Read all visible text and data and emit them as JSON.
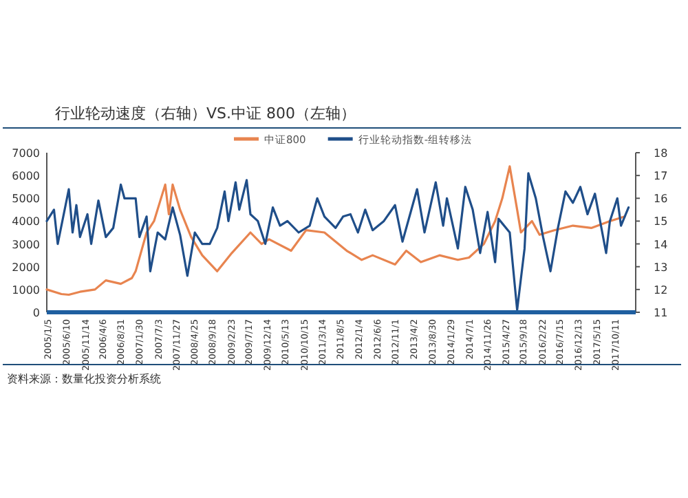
{
  "chart_data": {
    "type": "line",
    "title": "行业轮动速度（右轴）VS.中证 800（左轴）",
    "annotations": [
      "资料来源：数量化投资分析系统"
    ],
    "legend": "top",
    "grid": false,
    "xlim": [
      "2005-01-01",
      "2018-04-01"
    ],
    "xticks": [
      {
        "value": "2005-01-05",
        "label": "2005/1/5"
      },
      {
        "value": "2005-06-10",
        "label": "2005/6/10"
      },
      {
        "value": "2005-11-14",
        "label": "2005/11/14"
      },
      {
        "value": "2006-04-06",
        "label": "2006/4/6"
      },
      {
        "value": "2006-08-31",
        "label": "2006/8/31"
      },
      {
        "value": "2007-01-30",
        "label": "2007/1/30"
      },
      {
        "value": "2007-07-03",
        "label": "2007/7/3"
      },
      {
        "value": "2007-11-27",
        "label": "2007/11/27"
      },
      {
        "value": "2008-04-25",
        "label": "2008/4/25"
      },
      {
        "value": "2008-09-18",
        "label": "2008/9/18"
      },
      {
        "value": "2009-02-23",
        "label": "2009/2/23"
      },
      {
        "value": "2009-07-17",
        "label": "2009/7/17"
      },
      {
        "value": "2009-12-14",
        "label": "2009/12/14"
      },
      {
        "value": "2010-05-13",
        "label": "2010/5/13"
      },
      {
        "value": "2010-10-15",
        "label": "2010/10/15"
      },
      {
        "value": "2011-03-14",
        "label": "2011/3/14"
      },
      {
        "value": "2011-08-05",
        "label": "2011/8/5"
      },
      {
        "value": "2012-01-04",
        "label": "2012/1/4"
      },
      {
        "value": "2012-06-06",
        "label": "2012/6/6"
      },
      {
        "value": "2012-11-01",
        "label": "2012/11/1"
      },
      {
        "value": "2013-04-02",
        "label": "2013/4/2"
      },
      {
        "value": "2013-08-30",
        "label": "2013/8/30"
      },
      {
        "value": "2014-01-29",
        "label": "2014/1/29"
      },
      {
        "value": "2014-07-01",
        "label": "2014/7/1"
      },
      {
        "value": "2014-11-26",
        "label": "2014/11/26"
      },
      {
        "value": "2015-04-27",
        "label": "2015/4/27"
      },
      {
        "value": "2015-09-18",
        "label": "2015/9/18"
      },
      {
        "value": "2016-02-22",
        "label": "2016/2/22"
      },
      {
        "value": "2016-07-15",
        "label": "2016/7/15"
      },
      {
        "value": "2016-12-13",
        "label": "2016/12/13"
      },
      {
        "value": "2017-05-15",
        "label": "2017/5/15"
      },
      {
        "value": "2017-10-11",
        "label": "2017/10/11"
      }
    ],
    "ylim": [
      0,
      7000
    ],
    "yticks": [
      0,
      1000,
      2000,
      3000,
      4000,
      5000,
      6000,
      7000
    ],
    "y2lim": [
      11,
      18
    ],
    "y2ticks": [
      11,
      12,
      13,
      14,
      15,
      16,
      17,
      18
    ],
    "series": [
      {
        "name": "中证800",
        "color": "#e8844f",
        "x": [
          "2005-01",
          "2005-05",
          "2005-07",
          "2005-10",
          "2006-02",
          "2006-05",
          "2006-09",
          "2006-12",
          "2007-01",
          "2007-04",
          "2007-06",
          "2007-09",
          "2007-10",
          "2007-11",
          "2008-01",
          "2008-04",
          "2008-07",
          "2008-11",
          "2009-03",
          "2009-08",
          "2009-11",
          "2010-01",
          "2010-07",
          "2010-11",
          "2011-04",
          "2011-10",
          "2012-02",
          "2012-05",
          "2012-11",
          "2013-02",
          "2013-06",
          "2013-11",
          "2014-04",
          "2014-07",
          "2014-11",
          "2015-02",
          "2015-04",
          "2015-06",
          "2015-08",
          "2015-09",
          "2015-12",
          "2016-02",
          "2016-06",
          "2016-11",
          "2017-04",
          "2017-09",
          "2018-01"
        ],
        "values": [
          1000,
          800,
          770,
          900,
          1000,
          1400,
          1250,
          1500,
          1800,
          3500,
          4000,
          5600,
          4300,
          5600,
          4500,
          3300,
          2500,
          1800,
          2600,
          3500,
          3000,
          3200,
          2700,
          3600,
          3500,
          2700,
          2300,
          2500,
          2100,
          2700,
          2200,
          2500,
          2300,
          2400,
          3000,
          4000,
          5000,
          6400,
          4500,
          3500,
          4000,
          3400,
          3600,
          3800,
          3700,
          4000,
          4200
        ]
      },
      {
        "name": "行业轮动指数-组转移法",
        "color": "#1f4e89",
        "axis": "y2",
        "x": [
          "2005-01",
          "2005-03",
          "2005-04",
          "2005-07",
          "2005-08",
          "2005-09",
          "2005-10",
          "2005-12",
          "2006-01",
          "2006-03",
          "2006-05",
          "2006-07",
          "2006-09",
          "2006-10",
          "2007-01",
          "2007-02",
          "2007-04",
          "2007-05",
          "2007-07",
          "2007-09",
          "2007-11",
          "2008-01",
          "2008-03",
          "2008-05",
          "2008-07",
          "2008-09",
          "2008-11",
          "2009-01",
          "2009-02",
          "2009-04",
          "2009-05",
          "2009-07",
          "2009-08",
          "2009-10",
          "2009-12",
          "2010-02",
          "2010-04",
          "2010-06",
          "2010-09",
          "2010-12",
          "2011-02",
          "2011-04",
          "2011-07",
          "2011-09",
          "2011-11",
          "2012-01",
          "2012-03",
          "2012-05",
          "2012-08",
          "2012-11",
          "2013-01",
          "2013-05",
          "2013-07",
          "2013-10",
          "2013-12",
          "2014-01",
          "2014-04",
          "2014-06",
          "2014-08",
          "2014-10",
          "2014-12",
          "2015-02",
          "2015-03",
          "2015-06",
          "2015-08",
          "2015-10",
          "2015-11",
          "2016-01",
          "2016-03",
          "2016-05",
          "2016-07",
          "2016-09",
          "2016-11",
          "2017-01",
          "2017-03",
          "2017-05",
          "2017-08",
          "2017-09",
          "2017-11",
          "2017-12",
          "2018-02"
        ],
        "values": [
          15,
          15.5,
          14,
          16.4,
          14.5,
          15.7,
          14.3,
          15.3,
          14,
          15.9,
          14.3,
          14.7,
          16.6,
          16,
          16,
          14.3,
          15.2,
          12.8,
          14.5,
          14.2,
          15.6,
          14.4,
          12.6,
          14.5,
          14,
          14,
          14.7,
          16.3,
          15,
          16.7,
          15.5,
          16.8,
          15.3,
          15,
          14,
          15.6,
          14.8,
          15,
          14.5,
          14.8,
          16,
          15.2,
          14.7,
          15.2,
          15.3,
          14.5,
          15.5,
          14.6,
          15,
          15.7,
          14.1,
          16.4,
          14.5,
          16.7,
          14.8,
          16,
          13.8,
          16.5,
          15.5,
          13.6,
          15.4,
          13.2,
          15.1,
          14.5,
          11.1,
          13.8,
          17.1,
          16,
          14.3,
          12.8,
          14.7,
          16.3,
          15.8,
          16.5,
          15.3,
          16.2,
          13.6,
          15,
          16,
          14.8,
          15.6
        ]
      }
    ]
  }
}
